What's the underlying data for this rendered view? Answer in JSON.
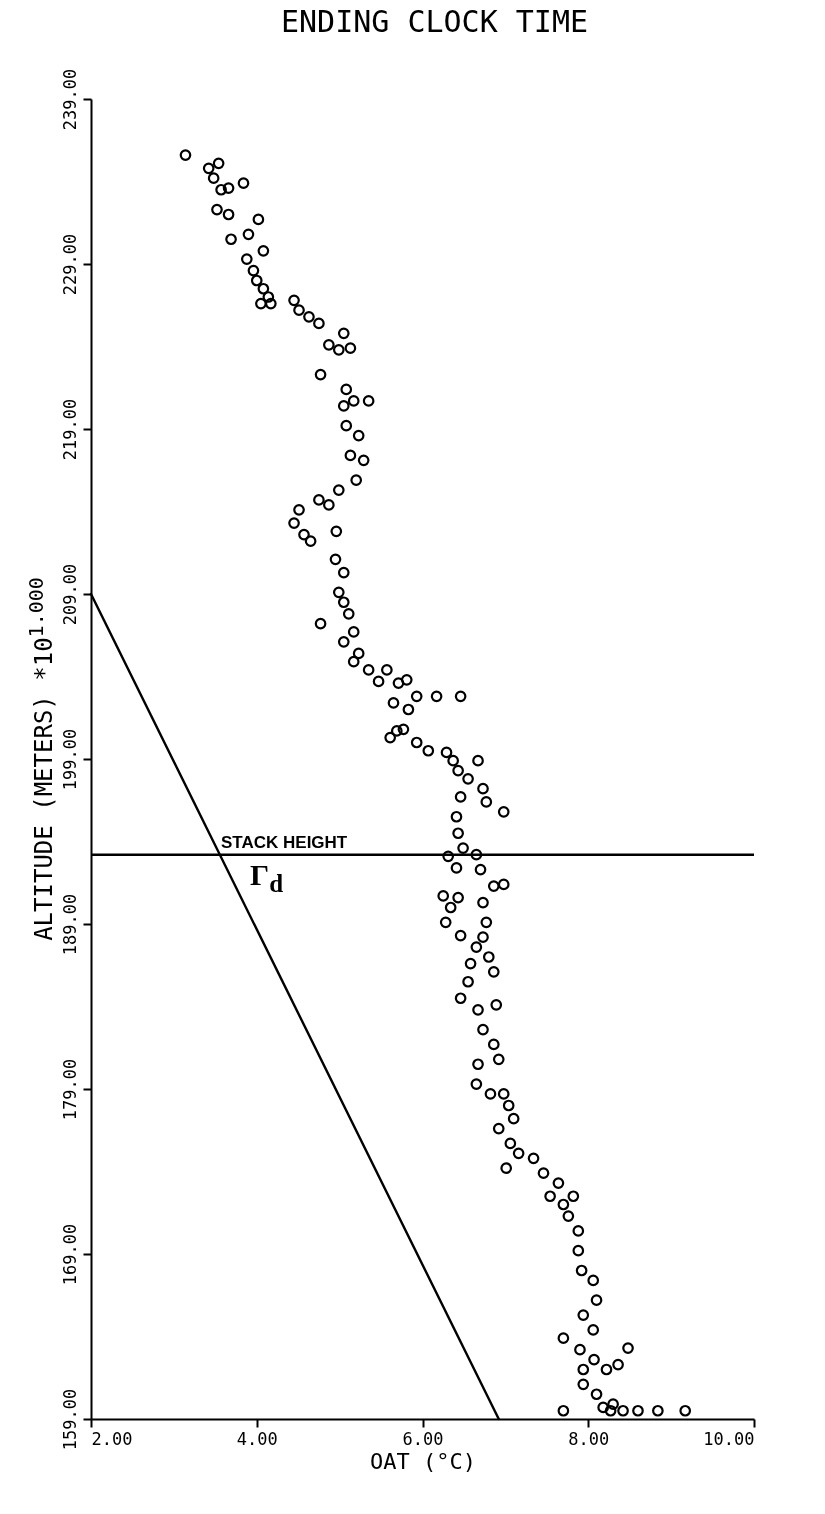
{
  "chart_data": {
    "type": "scatter",
    "title": "ENDING CLOCK TIME",
    "xlabel": "OAT (°C)",
    "ylabel": "ALTITUDE (METERS)   *10$^{1.000}$",
    "xlim": [
      2,
      10
    ],
    "xticks": [
      {
        "value": 2,
        "label": "2.00"
      },
      {
        "value": 4,
        "label": "4.00"
      },
      {
        "value": 6,
        "label": "6.00"
      },
      {
        "value": 8,
        "label": "8.00"
      },
      {
        "value": 10,
        "label": "10.00"
      }
    ],
    "ylim": [
      159,
      239
    ],
    "yticks": [
      {
        "value": 159,
        "label": "159.00"
      },
      {
        "value": 169,
        "label": "169.00"
      },
      {
        "value": 179,
        "label": "179.00"
      },
      {
        "value": 189,
        "label": "189.00"
      },
      {
        "value": 199,
        "label": "199.00"
      },
      {
        "value": 209,
        "label": "209.00"
      },
      {
        "value": 219,
        "label": "219.00"
      },
      {
        "value": 229,
        "label": "229.00"
      },
      {
        "value": 239,
        "label": "239.00"
      }
    ],
    "series": [
      {
        "color": "#000000",
        "marker": "circle",
        "x": [
          3.14,
          3.42,
          3.54,
          3.48,
          3.57,
          3.66,
          3.84,
          3.52,
          3.66,
          4.02,
          3.69,
          3.9,
          4.08,
          3.88,
          3.96,
          4.0,
          4.08,
          4.14,
          4.05,
          4.17,
          4.45,
          4.51,
          4.63,
          4.75,
          5.05,
          5.13,
          4.99,
          4.87,
          4.77,
          5.08,
          5.17,
          5.05,
          5.35,
          5.08,
          5.23,
          5.13,
          5.29,
          5.2,
          4.99,
          4.75,
          4.51,
          4.45,
          4.57,
          4.65,
          4.87,
          4.96,
          4.95,
          5.05,
          4.99,
          5.05,
          5.11,
          4.77,
          5.17,
          5.05,
          5.23,
          5.17,
          5.35,
          5.57,
          5.47,
          5.71,
          5.81,
          5.93,
          5.65,
          5.83,
          6.17,
          6.46,
          5.77,
          5.61,
          5.69,
          5.93,
          6.07,
          6.29,
          6.37,
          6.43,
          6.67,
          6.55,
          6.73,
          6.77,
          6.98,
          6.46,
          6.41,
          6.43,
          6.49,
          6.31,
          6.41,
          6.65,
          6.7,
          6.86,
          6.98,
          6.25,
          6.34,
          6.43,
          6.28,
          6.46,
          6.73,
          6.77,
          6.73,
          6.65,
          6.58,
          6.8,
          6.86,
          6.55,
          6.46,
          6.67,
          6.89,
          6.73,
          6.86,
          6.92,
          6.67,
          6.65,
          6.82,
          6.98,
          7.04,
          7.1,
          6.92,
          7.06,
          7.16,
          7.01,
          7.34,
          7.46,
          7.64,
          7.54,
          7.7,
          7.82,
          7.76,
          7.88,
          7.88,
          7.92,
          8.06,
          8.1,
          7.94,
          8.06,
          7.9,
          8.07,
          8.48,
          7.7,
          8.22,
          8.36,
          7.94,
          8.1,
          8.18,
          8.3,
          8.27,
          8.42,
          8.6,
          8.84,
          9.17,
          7.7,
          7.94
        ],
        "values": [
          235.6,
          234.8,
          235.1,
          234.2,
          233.5,
          233.6,
          233.9,
          232.3,
          232.0,
          231.7,
          230.5,
          230.8,
          229.8,
          229.3,
          228.6,
          228.0,
          227.5,
          227.0,
          226.6,
          226.6,
          226.8,
          226.2,
          225.8,
          225.4,
          224.8,
          223.9,
          223.8,
          224.1,
          222.3,
          221.4,
          220.7,
          220.4,
          220.7,
          219.2,
          218.6,
          217.4,
          217.1,
          215.9,
          215.3,
          214.7,
          214.1,
          213.3,
          212.6,
          212.2,
          214.4,
          212.8,
          211.1,
          210.3,
          209.1,
          208.5,
          207.8,
          207.2,
          206.7,
          206.1,
          205.4,
          204.9,
          204.4,
          204.4,
          203.7,
          203.6,
          203.8,
          202.8,
          202.4,
          202.0,
          202.8,
          202.8,
          200.8,
          200.3,
          200.7,
          200.0,
          199.5,
          199.4,
          198.9,
          198.3,
          198.9,
          197.8,
          197.2,
          196.4,
          195.8,
          196.7,
          195.5,
          194.5,
          193.6,
          193.1,
          192.4,
          193.2,
          192.3,
          191.3,
          191.4,
          190.7,
          190.0,
          190.6,
          189.1,
          188.3,
          190.3,
          189.1,
          188.2,
          187.6,
          186.6,
          187.0,
          186.1,
          185.5,
          184.5,
          183.8,
          184.1,
          182.6,
          181.7,
          180.8,
          180.5,
          179.3,
          178.7,
          178.7,
          178.0,
          177.2,
          176.6,
          175.7,
          175.1,
          174.2,
          174.8,
          173.9,
          173.3,
          172.5,
          172.0,
          172.5,
          171.3,
          170.4,
          169.2,
          168.0,
          167.4,
          166.2,
          165.3,
          164.4,
          163.2,
          162.6,
          163.3,
          163.9,
          162.0,
          162.3,
          161.1,
          160.5,
          159.7,
          159.9,
          159.5,
          159.5,
          159.5,
          159.5,
          159.5,
          159.5,
          162.0
        ]
      },
      {
        "type": "line",
        "color": "#000000",
        "marker": "none",
        "x": [
          2.0,
          6.92
        ],
        "values": [
          209,
          159
        ]
      }
    ],
    "ref_lines": [
      {
        "axis": "y",
        "value": 193.2,
        "label": "STACK HEIGHT",
        "color": "#000000"
      }
    ],
    "annotations": [
      "Γ$_{d}$"
    ]
  }
}
